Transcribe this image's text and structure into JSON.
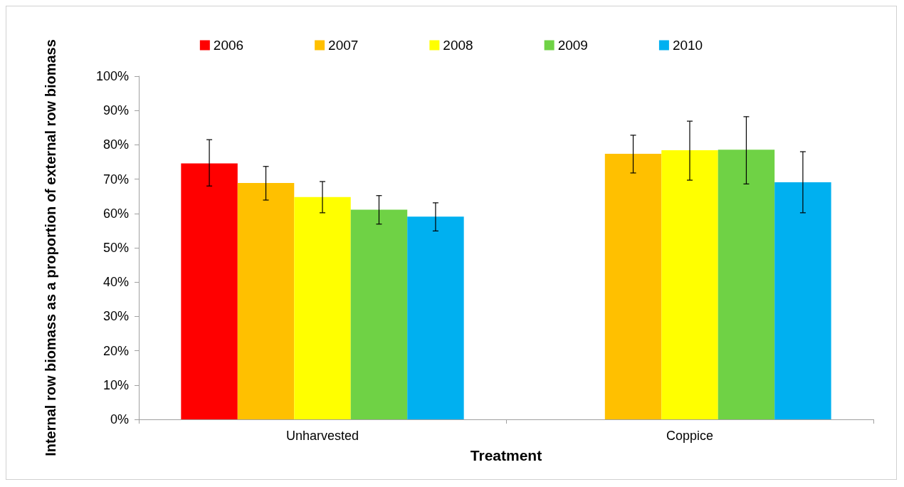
{
  "chart_data": {
    "type": "bar",
    "categories": [
      "Unharvested",
      "Coppice"
    ],
    "xlabel": "Treatment",
    "ylabel": "Internal row biomass as a proportion of external row biomass",
    "ylim": [
      0,
      100
    ],
    "yticks": [
      {
        "value": 0,
        "label": "0%"
      },
      {
        "value": 10,
        "label": "10%"
      },
      {
        "value": 20,
        "label": "20%"
      },
      {
        "value": 30,
        "label": "30%"
      },
      {
        "value": 40,
        "label": "40%"
      },
      {
        "value": 50,
        "label": "50%"
      },
      {
        "value": 60,
        "label": "60%"
      },
      {
        "value": 70,
        "label": "70%"
      },
      {
        "value": 80,
        "label": "80%"
      },
      {
        "value": 90,
        "label": "90%"
      },
      {
        "value": 100,
        "label": "100%"
      }
    ],
    "grid": false,
    "legend": "top",
    "series": [
      {
        "name": "2006",
        "color": "#ff0000",
        "values": [
          74.6,
          null
        ],
        "errors": [
          [
            68.0,
            81.5
          ],
          null
        ]
      },
      {
        "name": "2007",
        "color": "#ffc000",
        "values": [
          68.9,
          77.4
        ],
        "errors": [
          [
            63.9,
            73.7
          ],
          [
            71.8,
            82.8
          ]
        ]
      },
      {
        "name": "2008",
        "color": "#ffff00",
        "values": [
          64.8,
          78.4
        ],
        "errors": [
          [
            60.2,
            69.3
          ],
          [
            69.7,
            86.9
          ]
        ]
      },
      {
        "name": "2009",
        "color": "#6fd245",
        "values": [
          61.1,
          78.6
        ],
        "errors": [
          [
            56.9,
            65.2
          ],
          [
            68.6,
            88.2
          ]
        ]
      },
      {
        "name": "2010",
        "color": "#00b0f0",
        "values": [
          59.1,
          69.1
        ],
        "errors": [
          [
            54.9,
            63.1
          ],
          [
            60.2,
            78.0
          ]
        ]
      }
    ]
  }
}
